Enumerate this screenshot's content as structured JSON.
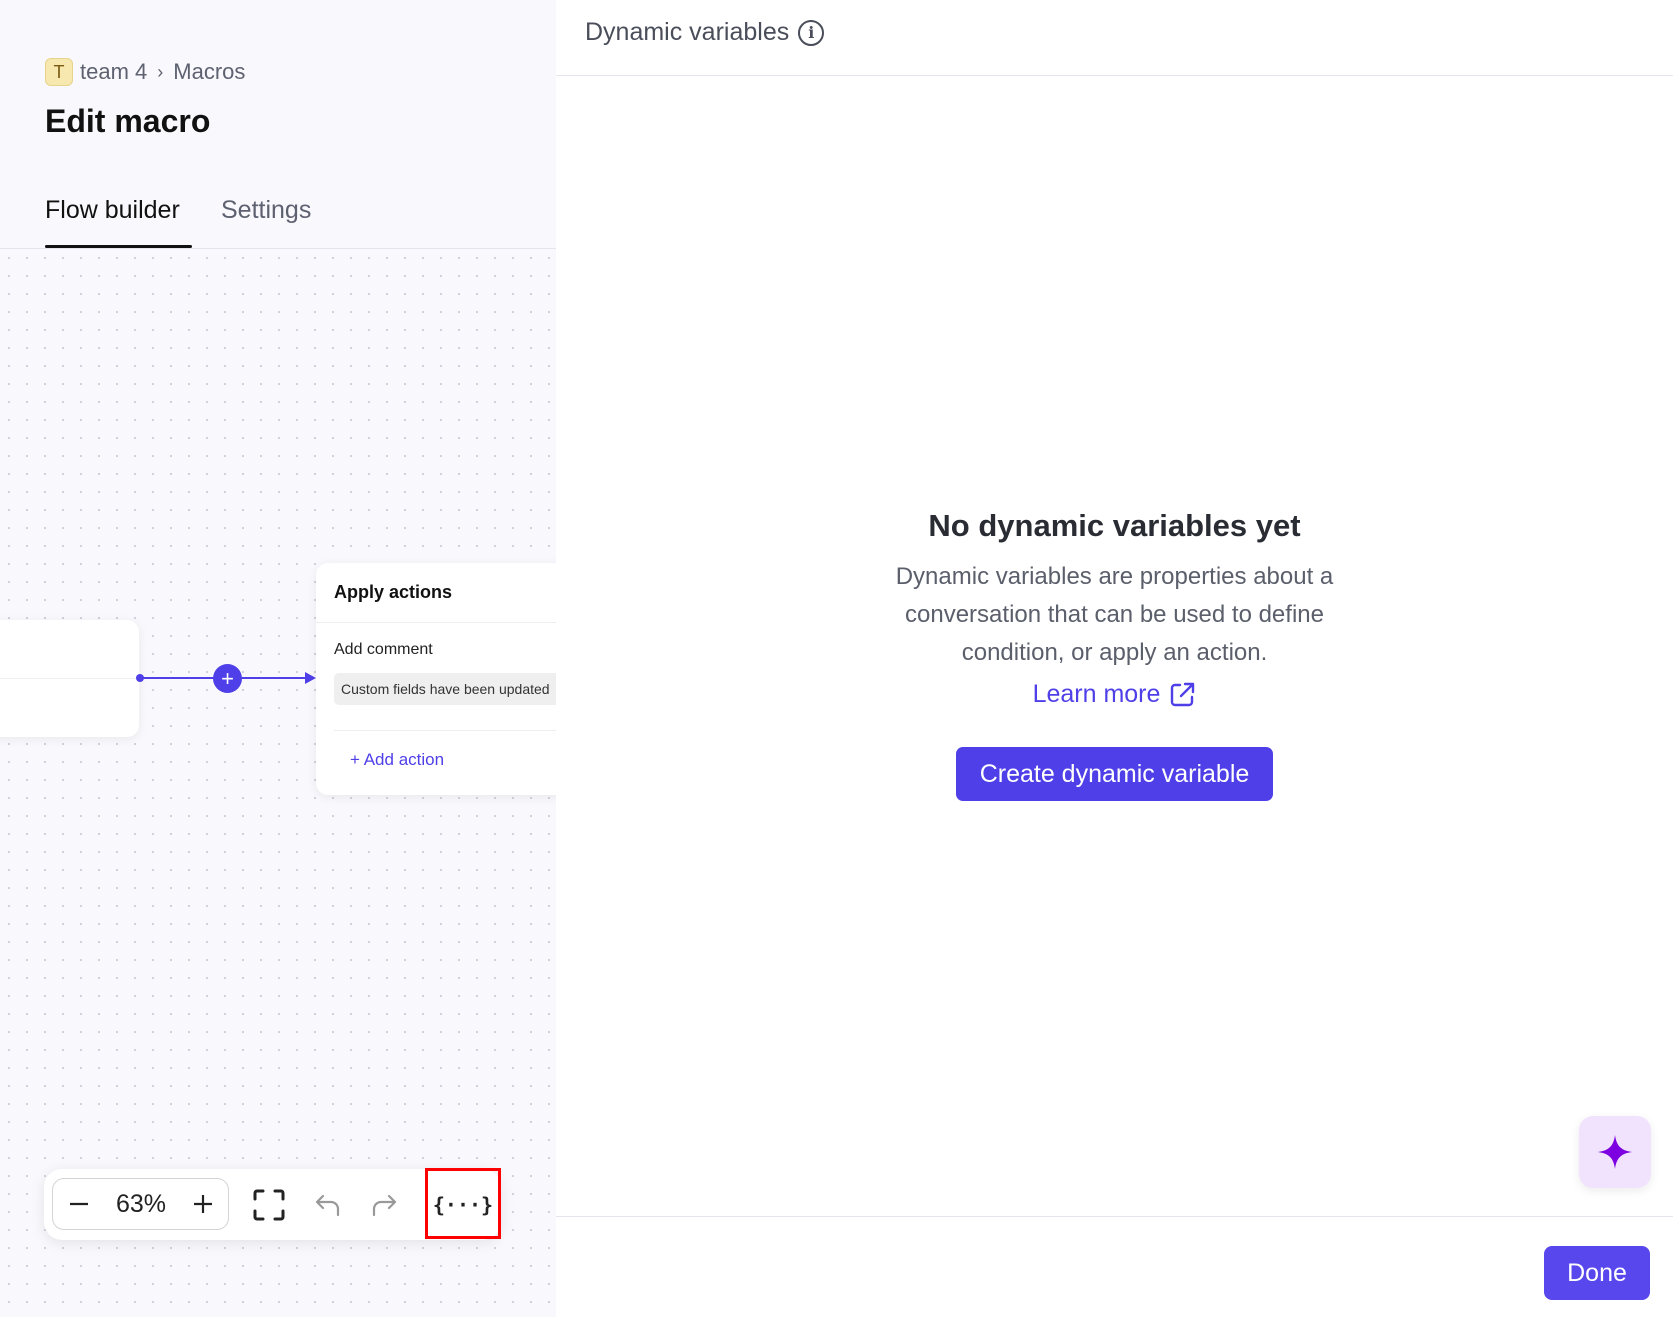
{
  "breadcrumb": {
    "badge": "T",
    "team": "team 4",
    "separator": "›",
    "section": "Macros"
  },
  "page_title": "Edit macro",
  "tabs": [
    {
      "label": "Flow builder",
      "active": true
    },
    {
      "label": "Settings",
      "active": false
    }
  ],
  "flow": {
    "connector_plus": "+",
    "apply_card": {
      "title": "Apply actions",
      "action_label": "Add comment",
      "comment_value": "Custom fields have been updated",
      "add_action": "Add action"
    }
  },
  "toolbar": {
    "zoom_level": "63%",
    "icons": [
      "minus-icon",
      "plus-icon",
      "fullscreen-icon",
      "undo-icon",
      "redo-icon",
      "variables-braces-icon"
    ],
    "highlight_color": "#ff0000"
  },
  "panel": {
    "title": "Dynamic variables",
    "empty_title": "No dynamic variables yet",
    "empty_description": "Dynamic variables are properties about a conversation that can be used to define condition, or apply an action.",
    "learn_more": "Learn more",
    "create_button": "Create dynamic variable",
    "done_button": "Done"
  },
  "colors": {
    "accent": "#4f3fe8",
    "sparkle": "#7c00e0",
    "sparkle_bg": "#f1e3fe"
  }
}
